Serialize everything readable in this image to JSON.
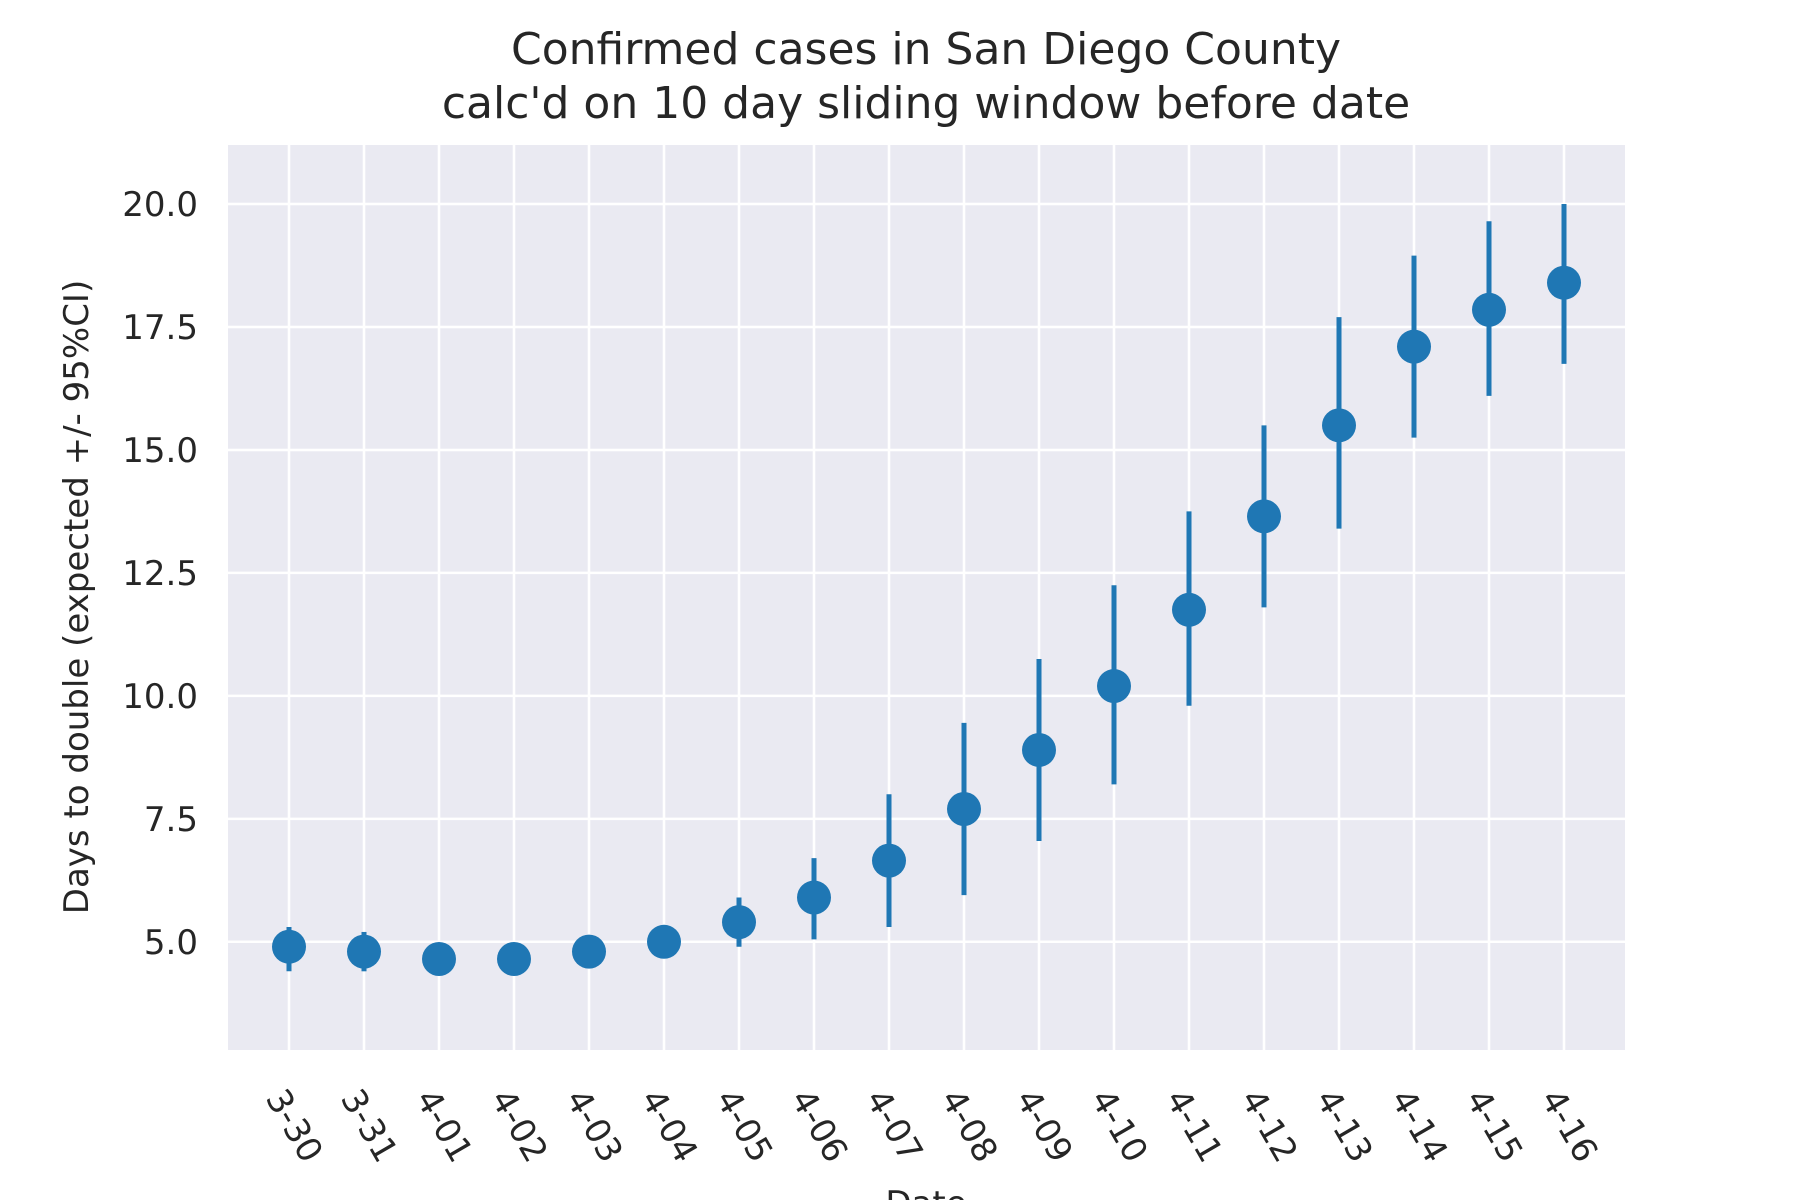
{
  "chart_data": {
    "type": "scatter",
    "title": "Confirmed cases in San Diego County",
    "subtitle": "calc'd on 10 day sliding window before date",
    "xlabel": "Date",
    "ylabel": "Days to double (expected +/- 95%CI)",
    "categories": [
      "3-30",
      "3-31",
      "4-01",
      "4-02",
      "4-03",
      "4-04",
      "4-05",
      "4-06",
      "4-07",
      "4-08",
      "4-09",
      "4-10",
      "4-11",
      "4-12",
      "4-13",
      "4-14",
      "4-15",
      "4-16"
    ],
    "series": [
      {
        "values": [
          4.9,
          4.8,
          4.65,
          4.65,
          4.8,
          5.0,
          5.4,
          5.9,
          6.65,
          7.7,
          8.9,
          10.2,
          11.75,
          13.65,
          15.5,
          17.1,
          17.85,
          18.4
        ],
        "lower": [
          4.4,
          4.4,
          4.55,
          4.5,
          4.6,
          4.8,
          4.9,
          5.05,
          5.3,
          5.95,
          7.05,
          8.2,
          9.8,
          11.8,
          13.4,
          15.25,
          16.1,
          16.75
        ],
        "upper": [
          5.3,
          5.2,
          4.75,
          4.8,
          4.95,
          5.2,
          5.9,
          6.7,
          8.0,
          9.45,
          10.75,
          12.25,
          13.75,
          15.5,
          17.7,
          18.95,
          19.65,
          20.0
        ]
      }
    ],
    "ylim": [
      2.8,
      21.2
    ],
    "yticks": [
      "5.0",
      "7.5",
      "10.0",
      "12.5",
      "15.0",
      "17.5",
      "20.0"
    ],
    "grid": true,
    "colors": {
      "marker": "#1f77b4",
      "background": "#eaeaf2",
      "grid": "#ffffff"
    }
  }
}
